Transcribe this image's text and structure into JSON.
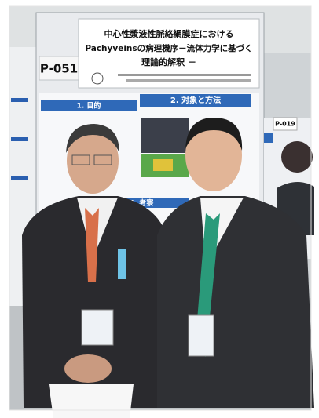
{
  "poster": {
    "number": "P-051",
    "title_lines": [
      "中心性漿液性脈絡網膜症における",
      "Pachyveinsの病理機序－流体力学に基づく",
      "理論的解釈 －"
    ],
    "sections": [
      "1. 目的",
      "2. 対象と方法",
      "4. 考察"
    ]
  },
  "neighbor_poster": {
    "number": "P-019"
  }
}
